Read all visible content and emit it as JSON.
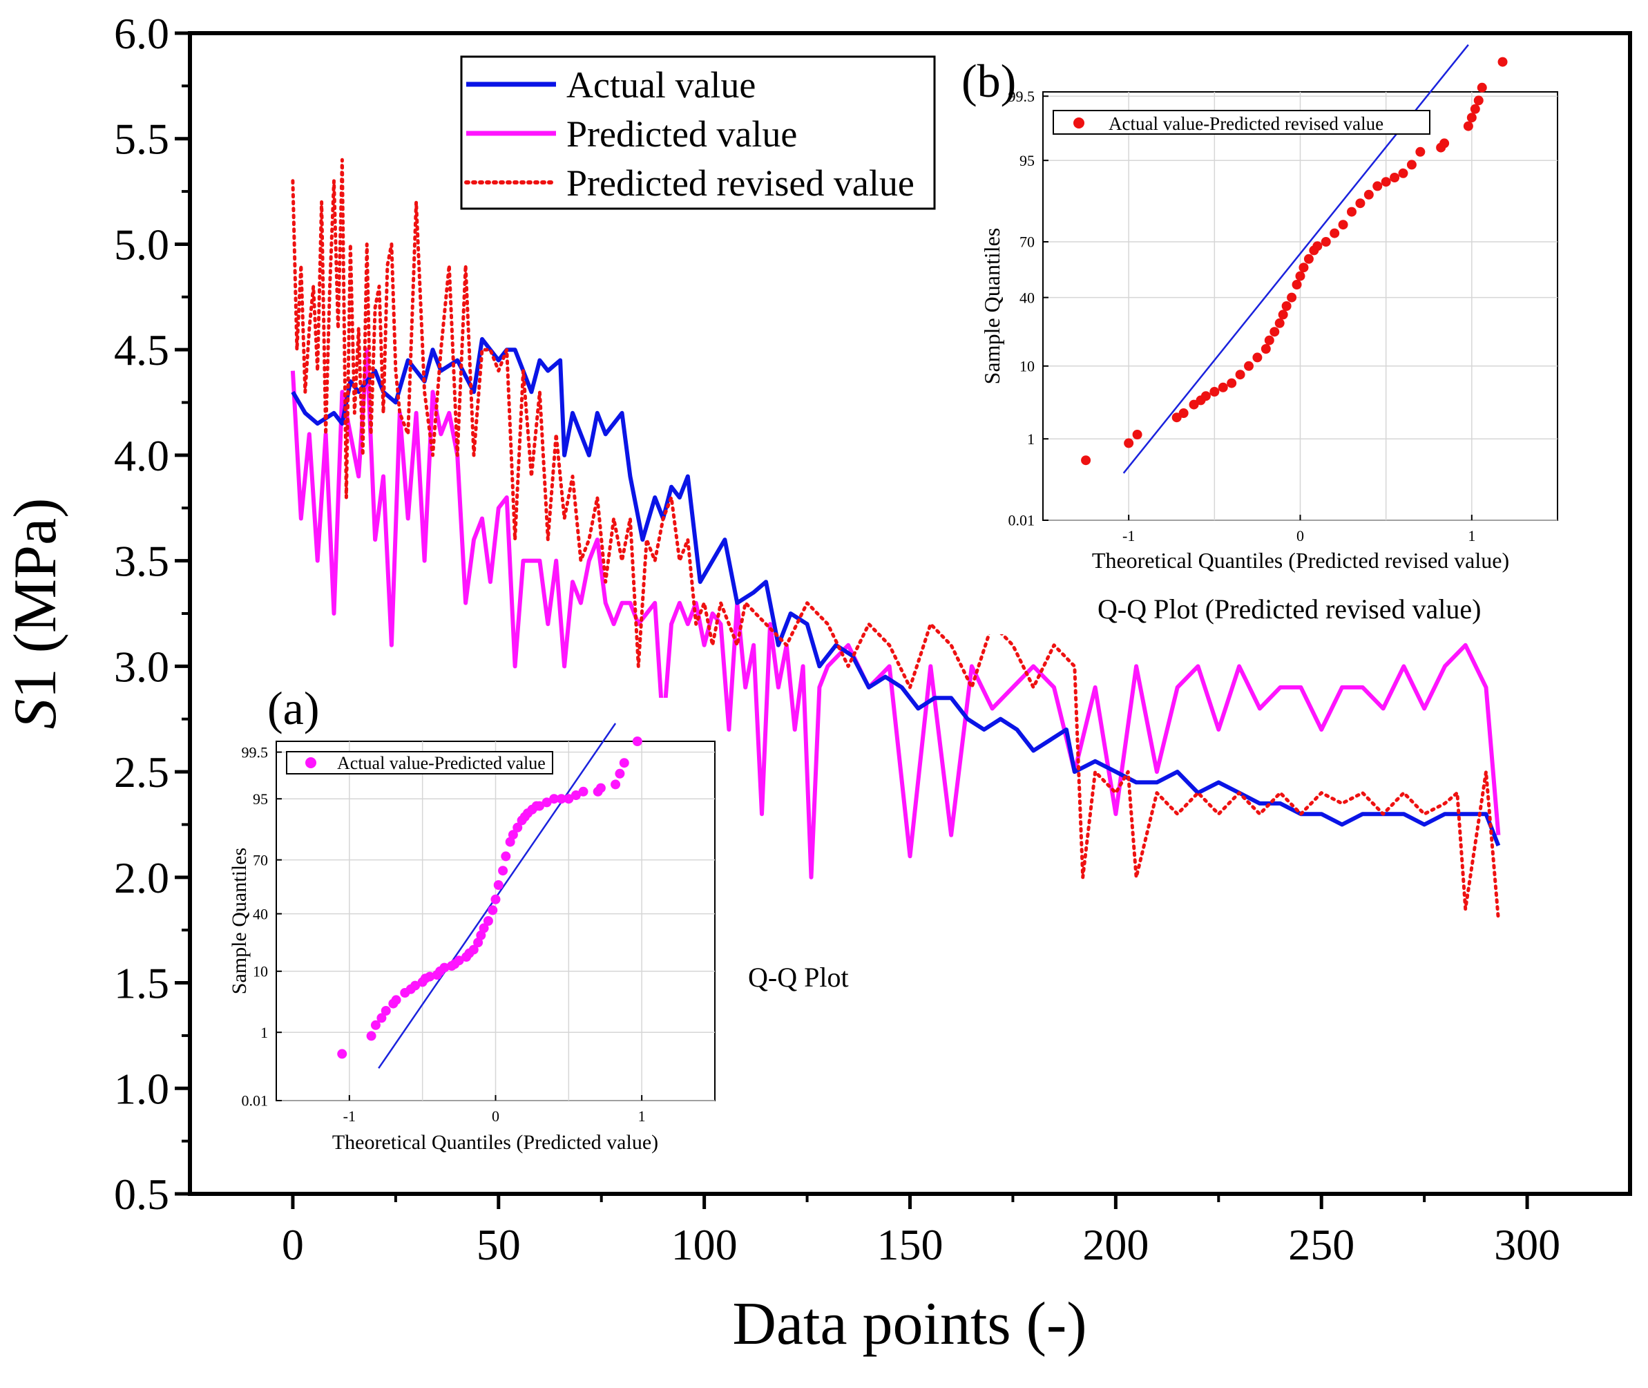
{
  "colors": {
    "actual": "#0a14e6",
    "predicted": "#ff14ff",
    "revised": "#ee1111",
    "fit": "#1a22dd",
    "frame": "#000000"
  },
  "chart_data": [
    {
      "type": "line",
      "title": "",
      "xlabel": "Data points (-)",
      "ylabel_italic": "S",
      "ylabel_rest": "1 (MPa)",
      "xlim": [
        -25,
        325
      ],
      "ylim": [
        0.5,
        6.0
      ],
      "xticks": [
        "0",
        "50",
        "100",
        "150",
        "200",
        "250",
        "300"
      ],
      "xtick_values": [
        0,
        50,
        100,
        150,
        200,
        250,
        300
      ],
      "yticks": [
        "0.5",
        "1.0",
        "1.5",
        "2.0",
        "2.5",
        "3.0",
        "3.5",
        "4.0",
        "4.5",
        "5.0",
        "5.5",
        "6.0"
      ],
      "ytick_values": [
        0.5,
        1.0,
        1.5,
        2.0,
        2.5,
        3.0,
        3.5,
        4.0,
        4.5,
        5.0,
        5.5,
        6.0
      ],
      "legend_position": "top-center",
      "series": [
        {
          "name": "Actual value",
          "style": "solid",
          "x": [
            0,
            3,
            6,
            10,
            12,
            14,
            16,
            20,
            22,
            25,
            28,
            30,
            32,
            34,
            36,
            40,
            44,
            46,
            48,
            50,
            52,
            54,
            56,
            58,
            60,
            62,
            65,
            66,
            68,
            70,
            72,
            74,
            76,
            78,
            80,
            82,
            85,
            88,
            90,
            92,
            94,
            96,
            99,
            102,
            105,
            108,
            112,
            115,
            118,
            121,
            125,
            128,
            132,
            136,
            140,
            144,
            148,
            152,
            156,
            160,
            164,
            168,
            172,
            176,
            180,
            184,
            188,
            190,
            195,
            200,
            205,
            210,
            215,
            220,
            225,
            230,
            235,
            240,
            245,
            250,
            255,
            260,
            265,
            270,
            275,
            280,
            285,
            290,
            293
          ],
          "values": [
            4.3,
            4.2,
            4.15,
            4.2,
            4.15,
            4.35,
            4.3,
            4.4,
            4.3,
            4.25,
            4.45,
            4.4,
            4.35,
            4.5,
            4.4,
            4.45,
            4.3,
            4.55,
            4.5,
            4.45,
            4.5,
            4.5,
            4.4,
            4.3,
            4.45,
            4.4,
            4.45,
            4.0,
            4.2,
            4.1,
            4.0,
            4.2,
            4.1,
            4.15,
            4.2,
            3.9,
            3.6,
            3.8,
            3.7,
            3.85,
            3.8,
            3.9,
            3.4,
            3.5,
            3.6,
            3.3,
            3.35,
            3.4,
            3.1,
            3.25,
            3.2,
            3.0,
            3.1,
            3.05,
            2.9,
            2.95,
            2.9,
            2.8,
            2.85,
            2.85,
            2.75,
            2.7,
            2.75,
            2.7,
            2.6,
            2.65,
            2.7,
            2.5,
            2.55,
            2.5,
            2.45,
            2.45,
            2.5,
            2.4,
            2.45,
            2.4,
            2.35,
            2.35,
            2.3,
            2.3,
            2.25,
            2.3,
            2.3,
            2.3,
            2.25,
            2.3,
            2.3,
            2.3,
            2.15
          ]
        },
        {
          "name": "Predicted value",
          "style": "solid",
          "x": [
            0,
            2,
            4,
            6,
            8,
            10,
            12,
            14,
            16,
            18,
            20,
            22,
            24,
            26,
            28,
            30,
            32,
            34,
            36,
            38,
            40,
            42,
            44,
            46,
            48,
            50,
            52,
            54,
            56,
            58,
            60,
            62,
            64,
            66,
            68,
            70,
            72,
            74,
            76,
            78,
            80,
            82,
            84,
            86,
            88,
            90,
            92,
            94,
            96,
            98,
            100,
            102,
            104,
            106,
            108,
            110,
            112,
            114,
            116,
            118,
            120,
            122,
            124,
            126,
            128,
            130,
            135,
            140,
            145,
            150,
            155,
            160,
            165,
            170,
            175,
            180,
            185,
            190,
            195,
            200,
            205,
            210,
            215,
            220,
            225,
            230,
            235,
            240,
            245,
            250,
            255,
            260,
            265,
            270,
            275,
            280,
            285,
            290,
            293
          ],
          "values": [
            4.4,
            3.7,
            4.1,
            3.5,
            4.1,
            3.25,
            4.3,
            4.1,
            3.9,
            4.5,
            3.6,
            3.9,
            3.1,
            4.2,
            3.7,
            4.2,
            3.5,
            4.3,
            4.1,
            4.2,
            4.0,
            3.3,
            3.6,
            3.7,
            3.4,
            3.75,
            3.8,
            3.0,
            3.5,
            3.5,
            3.5,
            3.2,
            3.5,
            3.0,
            3.4,
            3.3,
            3.5,
            3.6,
            3.3,
            3.2,
            3.3,
            3.3,
            3.2,
            3.25,
            3.3,
            2.7,
            3.2,
            3.3,
            3.2,
            3.3,
            3.1,
            3.25,
            3.2,
            2.7,
            3.3,
            2.9,
            3.1,
            2.3,
            3.2,
            2.9,
            3.1,
            2.7,
            3.0,
            2.0,
            2.9,
            3.0,
            3.1,
            2.9,
            3.0,
            2.1,
            3.0,
            2.2,
            3.0,
            2.8,
            2.9,
            3.0,
            2.9,
            2.5,
            2.9,
            2.3,
            3.0,
            2.5,
            2.9,
            3.0,
            2.7,
            3.0,
            2.8,
            2.9,
            2.9,
            2.7,
            2.9,
            2.9,
            2.8,
            3.0,
            2.8,
            3.0,
            3.1,
            2.9,
            2.2
          ]
        },
        {
          "name": "Predicted revised value",
          "style": "dotted",
          "x": [
            0,
            1,
            2,
            3,
            4,
            5,
            6,
            7,
            8,
            9,
            10,
            11,
            12,
            13,
            14,
            15,
            16,
            17,
            18,
            19,
            20,
            21,
            22,
            23,
            24,
            25,
            26,
            28,
            30,
            32,
            34,
            36,
            38,
            40,
            42,
            44,
            46,
            48,
            50,
            52,
            54,
            56,
            58,
            60,
            62,
            64,
            66,
            68,
            70,
            72,
            74,
            76,
            78,
            80,
            82,
            84,
            86,
            88,
            90,
            92,
            94,
            96,
            98,
            100,
            102,
            104,
            106,
            108,
            110,
            115,
            120,
            125,
            130,
            135,
            140,
            145,
            150,
            155,
            160,
            165,
            170,
            175,
            180,
            185,
            190,
            192,
            195,
            200,
            203,
            205,
            210,
            215,
            220,
            225,
            230,
            235,
            240,
            245,
            250,
            255,
            260,
            265,
            270,
            275,
            280,
            283,
            285,
            290,
            293
          ],
          "values": [
            5.3,
            4.5,
            4.9,
            4.3,
            4.6,
            4.8,
            4.4,
            5.2,
            4.1,
            4.8,
            5.3,
            4.6,
            5.4,
            3.8,
            5.0,
            4.2,
            4.6,
            4.0,
            5.0,
            4.1,
            4.7,
            4.8,
            4.2,
            4.9,
            5.0,
            4.4,
            4.2,
            4.1,
            5.2,
            4.3,
            4.0,
            4.5,
            4.9,
            4.0,
            4.9,
            4.0,
            4.5,
            4.5,
            4.4,
            4.5,
            3.6,
            4.4,
            3.9,
            4.3,
            3.6,
            4.1,
            3.7,
            3.9,
            3.5,
            3.6,
            3.8,
            3.4,
            3.7,
            3.5,
            3.7,
            3.0,
            3.6,
            3.5,
            3.7,
            3.8,
            3.5,
            3.6,
            3.2,
            3.3,
            3.1,
            3.3,
            3.2,
            3.1,
            3.3,
            3.2,
            3.1,
            3.3,
            3.2,
            3.0,
            3.2,
            3.1,
            2.9,
            3.2,
            3.1,
            2.9,
            3.2,
            3.1,
            2.9,
            3.1,
            3.0,
            2.0,
            2.5,
            2.4,
            2.5,
            2.0,
            2.4,
            2.3,
            2.4,
            2.3,
            2.4,
            2.3,
            2.4,
            2.3,
            2.4,
            2.35,
            2.4,
            2.3,
            2.4,
            2.3,
            2.35,
            2.4,
            1.85,
            2.5,
            1.8
          ]
        }
      ]
    },
    {
      "type": "scatter",
      "panel_label": "(a)",
      "caption": "Q-Q Plot",
      "legend": "Actual value-Predicted value",
      "xlabel": "Theoretical Quantiles (Predicted value)",
      "ylabel": "Sample Quantiles",
      "xlim": [
        -1.5,
        1.5
      ],
      "xticks": [
        "-1",
        "0",
        "1"
      ],
      "xtick_values": [
        -1,
        0,
        1
      ],
      "yticks": [
        "0.01",
        "1",
        "10",
        "40",
        "70",
        "95",
        "99.5"
      ],
      "ytick_frac": [
        0,
        0.19,
        0.36,
        0.52,
        0.67,
        0.84,
        0.97
      ],
      "fit_line": {
        "x": [
          -0.8,
          0.82
        ],
        "y_frac": [
          0.09,
          1.05
        ]
      },
      "points": {
        "x": [
          -1.05,
          -0.85,
          -0.82,
          -0.78,
          -0.75,
          -0.7,
          -0.68,
          -0.62,
          -0.58,
          -0.55,
          -0.5,
          -0.48,
          -0.45,
          -0.4,
          -0.38,
          -0.35,
          -0.3,
          -0.28,
          -0.25,
          -0.2,
          -0.18,
          -0.15,
          -0.12,
          -0.1,
          -0.08,
          -0.05,
          -0.02,
          0.0,
          0.02,
          0.05,
          0.07,
          0.1,
          0.12,
          0.15,
          0.18,
          0.2,
          0.22,
          0.25,
          0.28,
          0.3,
          0.35,
          0.4,
          0.45,
          0.5,
          0.55,
          0.6,
          0.7,
          0.72,
          0.82,
          0.85,
          0.88,
          0.97
        ],
        "y_frac": [
          0.13,
          0.18,
          0.21,
          0.23,
          0.25,
          0.27,
          0.28,
          0.3,
          0.31,
          0.32,
          0.33,
          0.34,
          0.345,
          0.35,
          0.36,
          0.37,
          0.375,
          0.38,
          0.39,
          0.4,
          0.41,
          0.42,
          0.44,
          0.46,
          0.48,
          0.5,
          0.53,
          0.56,
          0.6,
          0.64,
          0.68,
          0.72,
          0.74,
          0.76,
          0.78,
          0.79,
          0.8,
          0.81,
          0.82,
          0.82,
          0.83,
          0.84,
          0.84,
          0.84,
          0.85,
          0.86,
          0.86,
          0.87,
          0.88,
          0.91,
          0.94,
          1.0
        ]
      },
      "color_key": "predicted"
    },
    {
      "type": "scatter",
      "panel_label": "(b)",
      "caption": "Q-Q Plot (Predicted revised value)",
      "legend": "Actual value-Predicted revised value",
      "xlabel": "Theoretical Quantiles (Predicted revised value)",
      "ylabel": "Sample Quantiles",
      "xlim": [
        -1.5,
        1.5
      ],
      "xticks": [
        "-1",
        "0",
        "1"
      ],
      "xtick_values": [
        -1,
        0,
        1
      ],
      "yticks": [
        "0.01",
        "1",
        "10",
        "40",
        "70",
        "95",
        "99.5"
      ],
      "ytick_frac": [
        0,
        0.19,
        0.36,
        0.52,
        0.65,
        0.84,
        0.99
      ],
      "fit_line": {
        "x": [
          -1.03,
          0.98
        ],
        "y_frac": [
          0.11,
          1.11
        ]
      },
      "points": {
        "x": [
          -1.25,
          -1.0,
          -0.95,
          -0.72,
          -0.68,
          -0.62,
          -0.58,
          -0.55,
          -0.5,
          -0.45,
          -0.4,
          -0.35,
          -0.3,
          -0.25,
          -0.2,
          -0.18,
          -0.15,
          -0.12,
          -0.1,
          -0.08,
          -0.05,
          -0.02,
          0.0,
          0.02,
          0.05,
          0.08,
          0.1,
          0.15,
          0.2,
          0.25,
          0.3,
          0.35,
          0.4,
          0.45,
          0.5,
          0.55,
          0.6,
          0.65,
          0.7,
          0.82,
          0.84,
          0.98,
          1.0,
          1.02,
          1.04,
          1.06,
          1.18
        ],
        "y_frac": [
          0.14,
          0.18,
          0.2,
          0.24,
          0.25,
          0.27,
          0.28,
          0.29,
          0.3,
          0.31,
          0.32,
          0.34,
          0.36,
          0.38,
          0.4,
          0.42,
          0.44,
          0.46,
          0.48,
          0.5,
          0.52,
          0.55,
          0.57,
          0.59,
          0.61,
          0.63,
          0.64,
          0.65,
          0.67,
          0.69,
          0.72,
          0.74,
          0.76,
          0.78,
          0.79,
          0.8,
          0.81,
          0.83,
          0.86,
          0.87,
          0.88,
          0.92,
          0.94,
          0.96,
          0.98,
          1.01,
          1.07
        ]
      },
      "color_key": "revised"
    }
  ]
}
